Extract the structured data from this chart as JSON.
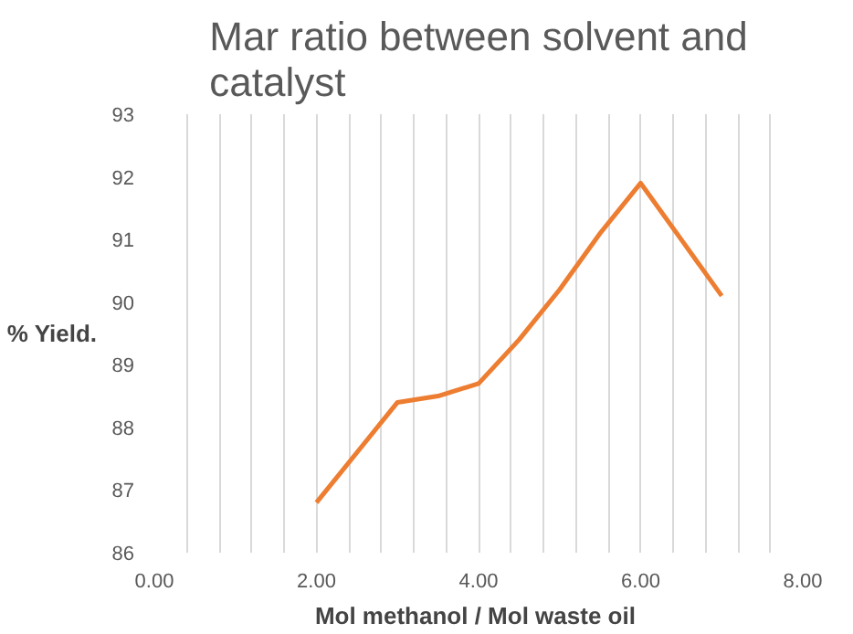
{
  "chart_data": {
    "type": "line",
    "title": "Mar ratio between solvent and catalyst",
    "xlabel": "Mol methanol /  Mol waste oil",
    "ylabel": "% Yield.",
    "x": [
      2,
      2.5,
      3,
      3.5,
      4,
      4.5,
      5,
      5.5,
      6,
      6.5,
      7
    ],
    "series": [
      {
        "color": "#ed7d31",
        "values": [
          86.8,
          87.6,
          88.4,
          88.5,
          88.7,
          89.4,
          90.2,
          91.1,
          91.9,
          91.0,
          90.1
        ]
      }
    ],
    "xlim": [
      0,
      8
    ],
    "ylim": [
      86,
      93
    ],
    "xticks": [
      {
        "value": 0,
        "label": "0.00"
      },
      {
        "value": 0.4,
        "label": null
      },
      {
        "value": 0.8,
        "label": null
      },
      {
        "value": 1.2,
        "label": null
      },
      {
        "value": 1.6,
        "label": null
      },
      {
        "value": 2,
        "label": "2.00"
      },
      {
        "value": 2.4,
        "label": null
      },
      {
        "value": 2.8,
        "label": null
      },
      {
        "value": 3.2,
        "label": null
      },
      {
        "value": 3.6,
        "label": null
      },
      {
        "value": 4,
        "label": "4.00"
      },
      {
        "value": 4.4,
        "label": null
      },
      {
        "value": 4.8,
        "label": null
      },
      {
        "value": 5.2,
        "label": null
      },
      {
        "value": 5.6,
        "label": null
      },
      {
        "value": 6,
        "label": "6.00"
      },
      {
        "value": 6.4,
        "label": null
      },
      {
        "value": 6.8,
        "label": null
      },
      {
        "value": 7.2,
        "label": null
      },
      {
        "value": 7.6,
        "label": null
      },
      {
        "value": 8,
        "label": "8.00"
      }
    ],
    "yticks": [
      86,
      87,
      88,
      89,
      90,
      91,
      92,
      93
    ],
    "grid": "x",
    "marker": "none",
    "line_style": "solid"
  }
}
